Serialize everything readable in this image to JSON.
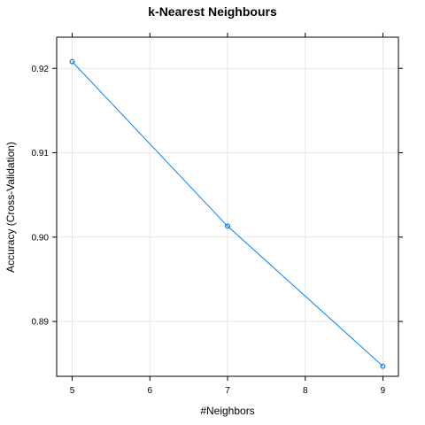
{
  "chart_data": {
    "type": "line",
    "title": "k-Nearest Neighbours",
    "xlabel": "#Neighbors",
    "ylabel": "Accuracy (Cross-Validation)",
    "x_ticks": [
      "5",
      "6",
      "7",
      "8",
      "9"
    ],
    "y_ticks": [
      "0.89",
      "0.90",
      "0.91",
      "0.92"
    ],
    "xlim": [
      4.8,
      9.2
    ],
    "ylim": [
      0.8835,
      0.9237
    ],
    "grid": true,
    "series": [
      {
        "x": [
          5,
          7,
          9
        ],
        "y": [
          0.9208,
          0.9013,
          0.8847
        ]
      }
    ],
    "series_color": "#0080ff"
  }
}
